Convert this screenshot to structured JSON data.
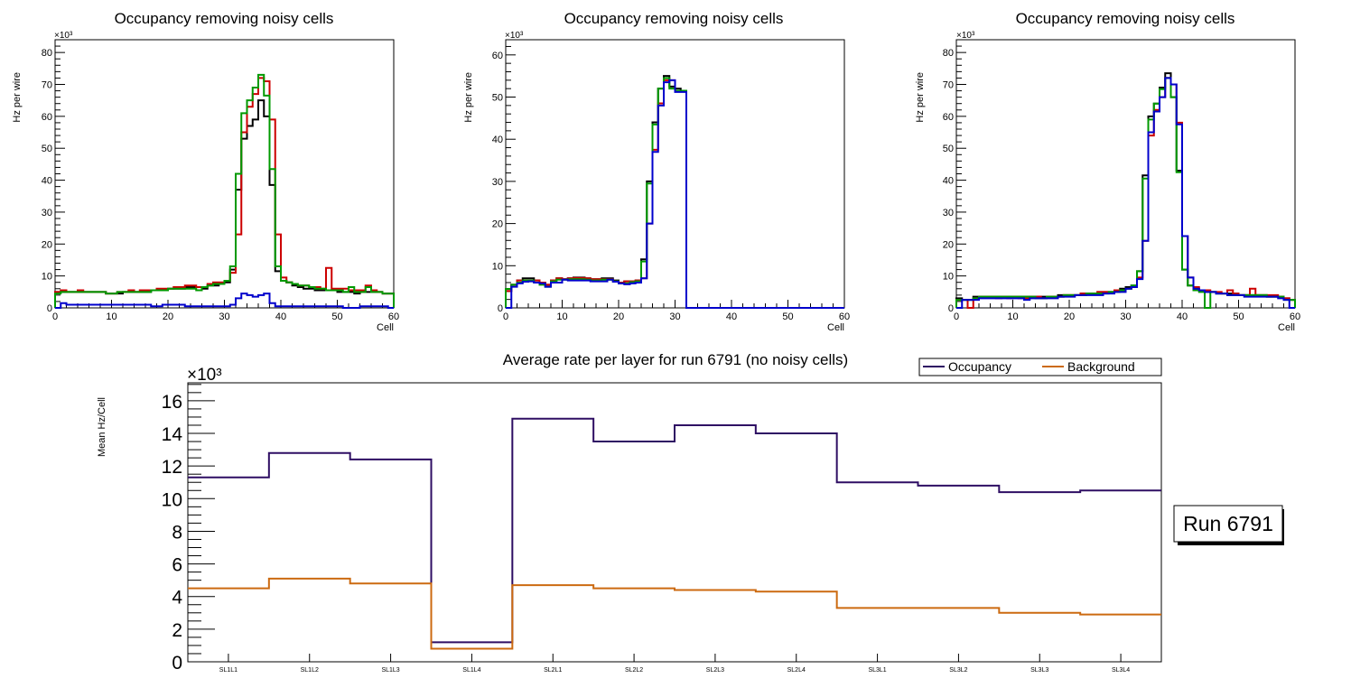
{
  "chart_data": [
    {
      "type": "step-histogram",
      "title": "Occupancy removing noisy cells",
      "xlabel": "Cell",
      "ylabel": "Hz per wire",
      "y_multiplier": "×10³",
      "xlim": [
        0,
        60
      ],
      "ylim": [
        0,
        84
      ],
      "xticks": [
        0,
        10,
        20,
        30,
        40,
        50,
        60
      ],
      "yticks": [
        0,
        10,
        20,
        30,
        40,
        50,
        60,
        70,
        80
      ],
      "bin_width": 1,
      "series": [
        {
          "name": "black",
          "color": "#000000",
          "values": [
            5,
            5,
            5,
            5,
            5,
            5,
            5,
            5,
            5,
            4.5,
            4.5,
            4.5,
            5,
            5,
            5,
            5,
            5,
            5.5,
            5.5,
            5.5,
            6,
            6,
            6,
            6.5,
            6.5,
            6.5,
            6,
            7,
            7,
            7.5,
            8,
            12,
            37,
            53,
            57,
            59,
            65,
            60,
            38.5,
            11.5,
            8.5,
            8,
            7,
            6.5,
            6,
            6,
            5.5,
            5.5,
            5.5,
            5.5,
            5,
            5,
            5,
            4.5,
            5,
            5,
            5,
            5,
            4.5,
            4.5
          ]
        },
        {
          "name": "red",
          "color": "#cc0000",
          "values": [
            5,
            5.5,
            5,
            5,
            5.5,
            5,
            5,
            5,
            5,
            4.5,
            4.5,
            5,
            5,
            5.5,
            5,
            5.5,
            5.5,
            5.5,
            6,
            6,
            6,
            6.5,
            6.5,
            7,
            7,
            6.5,
            6.5,
            7.5,
            8,
            8,
            8.5,
            11,
            23,
            55,
            63,
            67,
            72,
            71,
            59,
            23,
            9.5,
            8,
            7.5,
            7,
            7,
            6.5,
            6.5,
            6,
            12.5,
            6,
            6,
            6,
            5.5,
            5.5,
            5.5,
            7,
            5.5,
            5,
            4.5,
            4.5
          ]
        },
        {
          "name": "green",
          "color": "#009900",
          "values": [
            4.5,
            5,
            5,
            5,
            5,
            5,
            5,
            5,
            5,
            4.5,
            4.5,
            5,
            5,
            5,
            5,
            5,
            5,
            5.5,
            5.5,
            5.5,
            6,
            6,
            6,
            6,
            6,
            5.5,
            6.5,
            7,
            7.5,
            7.5,
            8.5,
            13,
            42,
            61,
            65,
            69,
            73,
            66.5,
            43.5,
            13,
            8.5,
            8,
            7.5,
            7,
            7,
            6.5,
            6,
            6,
            5.5,
            5.5,
            5.5,
            5,
            6.5,
            5,
            5,
            6.5,
            5,
            5,
            4.5,
            4.5
          ]
        },
        {
          "name": "blue",
          "color": "#0000cc",
          "values": [
            0,
            1.5,
            1,
            1,
            1,
            1,
            1,
            1,
            1,
            1,
            1,
            1,
            1,
            1,
            1,
            1,
            1,
            0.5,
            0.5,
            1,
            1,
            1,
            1,
            0.5,
            0.5,
            0.5,
            0.5,
            0.5,
            0.5,
            0.5,
            0.5,
            1,
            3,
            4.5,
            4,
            3.5,
            4,
            4.5,
            1.5,
            0.5,
            0.5,
            0.5,
            0.5,
            0.5,
            0.5,
            0.5,
            0.5,
            0.5,
            0.5,
            0.5,
            0.5,
            0,
            0,
            0,
            0.5,
            0.5,
            0.5,
            0.5,
            0.5,
            0
          ]
        }
      ]
    },
    {
      "type": "step-histogram",
      "title": "Occupancy removing noisy cells",
      "xlabel": "Cell",
      "ylabel": "Hz per wire",
      "y_multiplier": "×10³",
      "xlim": [
        0,
        60
      ],
      "ylim": [
        0,
        63.6
      ],
      "xticks": [
        0,
        10,
        20,
        30,
        40,
        50,
        60
      ],
      "yticks": [
        0,
        10,
        20,
        30,
        40,
        50,
        60
      ],
      "bin_width": 1,
      "series": [
        {
          "name": "black",
          "color": "#000000",
          "values": [
            4,
            5.5,
            6.5,
            7,
            7,
            6.5,
            6,
            5.5,
            6.5,
            7,
            6.8,
            7,
            7.2,
            7.2,
            7,
            6.8,
            6.8,
            7,
            7,
            6.5,
            6,
            6.3,
            6.3,
            6.5,
            11.5,
            30,
            44,
            52,
            55,
            52.5,
            52,
            51.5,
            0,
            0,
            0,
            0,
            0,
            0,
            0,
            0,
            0,
            0,
            0,
            0,
            0,
            0,
            0,
            0,
            0,
            0,
            0,
            0,
            0,
            0,
            0,
            0,
            0,
            0,
            0,
            0
          ]
        },
        {
          "name": "red",
          "color": "#cc0000",
          "values": [
            4,
            5.5,
            6.5,
            6.5,
            6.5,
            6.5,
            6,
            5.5,
            6.5,
            7,
            6.8,
            7,
            7.1,
            7.1,
            7,
            6.8,
            6.8,
            6.8,
            6.8,
            6.3,
            6,
            6.3,
            6.3,
            6.5,
            7,
            20,
            37.5,
            48.5,
            54,
            54,
            51.5,
            51.5,
            0,
            0,
            0,
            0,
            0,
            0,
            0,
            0,
            0,
            0,
            0,
            0,
            0,
            0,
            0,
            0,
            0,
            0,
            0,
            0,
            0,
            0,
            0,
            0,
            0,
            0,
            0,
            0
          ]
        },
        {
          "name": "green",
          "color": "#009900",
          "values": [
            4.5,
            5.5,
            6,
            6.5,
            6.5,
            6,
            5.5,
            5,
            6.3,
            6.7,
            6.7,
            6.8,
            6.8,
            6.8,
            6.7,
            6.5,
            6.5,
            6.7,
            6.7,
            6.3,
            5.8,
            5.8,
            6.1,
            6.3,
            11,
            29.5,
            43.5,
            52,
            54.5,
            52,
            51.5,
            51.5,
            0,
            0,
            0,
            0,
            0,
            0,
            0,
            0,
            0,
            0,
            0,
            0,
            0,
            0,
            0,
            0,
            0,
            0,
            0,
            0,
            0,
            0,
            0,
            0,
            0,
            0,
            0,
            0
          ]
        },
        {
          "name": "blue",
          "color": "#0000cc",
          "values": [
            0,
            5,
            5.8,
            6.2,
            6.3,
            6,
            5.8,
            5,
            6,
            6,
            6.7,
            6.5,
            6.5,
            6.5,
            6.5,
            6.3,
            6.3,
            6.3,
            6.7,
            6.2,
            5.8,
            5.6,
            5.8,
            6,
            7,
            20,
            37,
            48,
            53.5,
            54,
            51.2,
            51.2,
            0,
            0,
            0,
            0,
            0,
            0,
            0,
            0,
            0,
            0,
            0,
            0,
            0,
            0,
            0,
            0,
            0,
            0,
            0,
            0,
            0,
            0,
            0,
            0,
            0,
            0,
            0,
            0
          ]
        }
      ]
    },
    {
      "type": "step-histogram",
      "title": "Occupancy removing noisy cells",
      "xlabel": "Cell",
      "ylabel": "Hz per wire",
      "y_multiplier": "×10³",
      "xlim": [
        0,
        60
      ],
      "ylim": [
        0,
        84
      ],
      "xticks": [
        0,
        10,
        20,
        30,
        40,
        50,
        60
      ],
      "yticks": [
        0,
        10,
        20,
        30,
        40,
        50,
        60,
        70,
        80
      ],
      "bin_width": 1,
      "series": [
        {
          "name": "black",
          "color": "#000000",
          "values": [
            3,
            2.5,
            2.5,
            3.5,
            3.5,
            3.5,
            3.5,
            3.5,
            3.5,
            3.5,
            3.5,
            3.5,
            3.5,
            3.5,
            3.5,
            3.5,
            3.5,
            3.5,
            4,
            4,
            4,
            4,
            4.5,
            4.5,
            4.5,
            5,
            5,
            5,
            5.5,
            6,
            6.5,
            7,
            11.5,
            41.5,
            60,
            64,
            69,
            73.5,
            66,
            43,
            12,
            7,
            6,
            5.5,
            5,
            5,
            4.5,
            4.5,
            4.5,
            4.5,
            4,
            4,
            4,
            4,
            4,
            3.5,
            3.5,
            3.5,
            3,
            2.5
          ]
        },
        {
          "name": "red",
          "color": "#cc0000",
          "values": [
            2.5,
            2.5,
            0,
            3,
            3.5,
            3.5,
            3.5,
            3,
            3.5,
            3,
            3.5,
            3,
            3,
            3.5,
            3.5,
            3,
            3.5,
            3.5,
            3.5,
            4,
            4,
            4,
            4.5,
            4.5,
            4.5,
            5,
            5,
            5,
            5.5,
            5.5,
            6,
            6.5,
            9.5,
            21,
            54,
            62,
            66,
            72,
            70,
            58,
            22.5,
            9.5,
            6.5,
            5.5,
            5.5,
            5,
            5,
            4.5,
            5.5,
            4.5,
            4,
            4,
            6,
            4,
            4,
            4,
            4,
            3.5,
            3,
            2.5
          ]
        },
        {
          "name": "green",
          "color": "#009900",
          "values": [
            2.5,
            2.5,
            2.5,
            3,
            3.5,
            3.5,
            3.5,
            3.5,
            3.5,
            3.5,
            3.5,
            3.5,
            3.5,
            3.5,
            3,
            3,
            3.5,
            3.5,
            3.5,
            4,
            4,
            4,
            4,
            4.5,
            4.5,
            4.5,
            4.5,
            5,
            5,
            5.5,
            6,
            7,
            11.5,
            40.5,
            59,
            64,
            68.5,
            72,
            66,
            42.5,
            12,
            7,
            5.5,
            5,
            0,
            5,
            4.5,
            4.5,
            4,
            4,
            4,
            4,
            4,
            4,
            4,
            3.5,
            3.5,
            3.5,
            2.5,
            2.5
          ]
        },
        {
          "name": "blue",
          "color": "#0000cc",
          "values": [
            0,
            2.5,
            2.5,
            2.5,
            3,
            3,
            3,
            3,
            3,
            3,
            3,
            3,
            2.5,
            3,
            3,
            3,
            3,
            3,
            3.5,
            3.5,
            3.5,
            4,
            4,
            4,
            4,
            4,
            4.5,
            4.5,
            5,
            5,
            6,
            6.5,
            9,
            21,
            55,
            61.5,
            66,
            72,
            70,
            57.5,
            22.5,
            9.5,
            6,
            5.5,
            5,
            5,
            4.5,
            4.5,
            4,
            4,
            4,
            3.5,
            3.5,
            3.5,
            3.5,
            3.5,
            3.5,
            3,
            2.5,
            0
          ]
        }
      ]
    },
    {
      "type": "step-histogram",
      "title": "Average rate per layer for run 6791 (no noisy cells)",
      "xlabel": "",
      "ylabel": "Mean Hz/Cell",
      "y_multiplier": "×10³",
      "ylim": [
        0,
        17.1
      ],
      "yticks": [
        0,
        2,
        4,
        6,
        8,
        10,
        12,
        14,
        16
      ],
      "categories": [
        "SL1L1",
        "SL1L2",
        "SL1L3",
        "SL1L4",
        "SL2L1",
        "SL2L2",
        "SL2L3",
        "SL2L4",
        "SL3L1",
        "SL3L2",
        "SL3L3",
        "SL3L4"
      ],
      "legend": {
        "placement": "top-right",
        "entries": [
          "Occupancy",
          "Background"
        ]
      },
      "series": [
        {
          "name": "Occupancy",
          "color": "#2e0e63",
          "values": [
            11.3,
            12.8,
            12.4,
            1.2,
            14.9,
            13.5,
            14.5,
            14.0,
            11.0,
            10.8,
            10.4,
            10.5
          ]
        },
        {
          "name": "Background",
          "color": "#cc6a10",
          "values": [
            4.5,
            5.1,
            4.8,
            0.8,
            4.7,
            4.5,
            4.4,
            4.3,
            3.3,
            3.3,
            3.0,
            2.9
          ]
        }
      ]
    }
  ],
  "run_label": "Run 6791"
}
